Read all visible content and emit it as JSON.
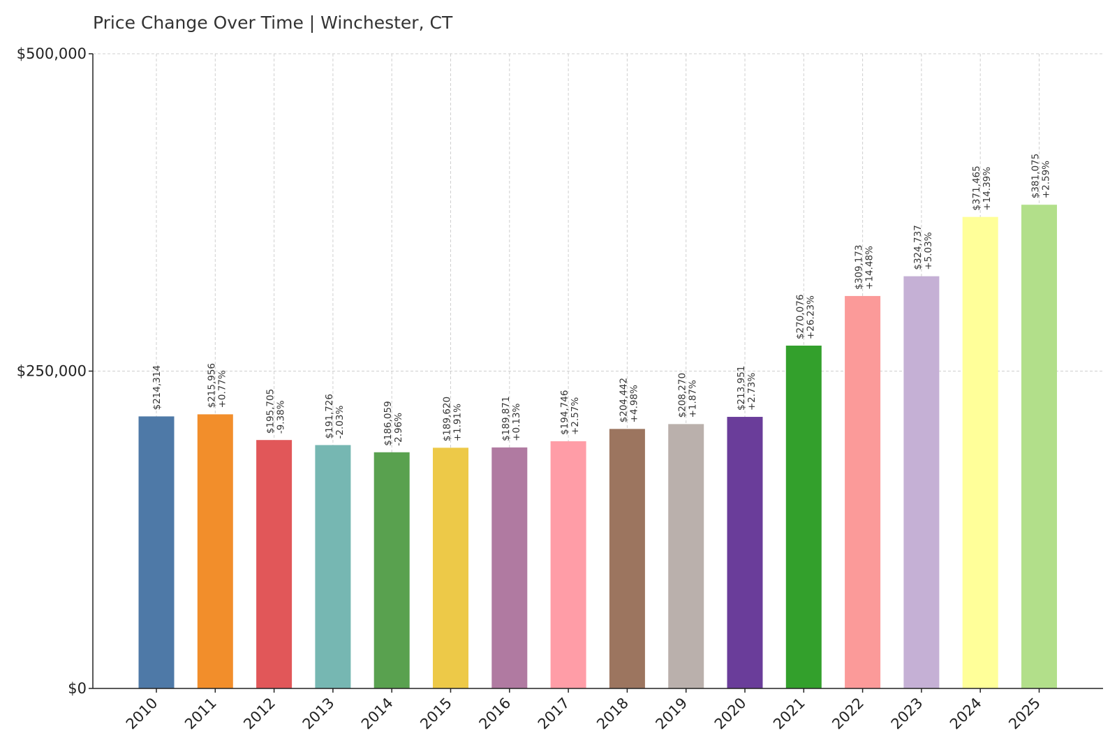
{
  "chart_data": {
    "type": "bar",
    "title": "Price Change Over Time | Winchester, CT",
    "xlabel": "",
    "ylabel": "",
    "ylim": [
      0,
      500000
    ],
    "yticks": [
      {
        "value": 0,
        "label": "$0"
      },
      {
        "value": 250000,
        "label": "$250,000"
      },
      {
        "value": 500000,
        "label": "$500,000"
      }
    ],
    "grid": true,
    "categories": [
      "2010",
      "2011",
      "2012",
      "2013",
      "2014",
      "2015",
      "2016",
      "2017",
      "2018",
      "2019",
      "2020",
      "2021",
      "2022",
      "2023",
      "2024",
      "2025"
    ],
    "values": [
      214314,
      215956,
      195705,
      191726,
      186059,
      189620,
      189871,
      194746,
      204442,
      208270,
      213951,
      270076,
      309173,
      324737,
      371465,
      381075
    ],
    "value_labels": [
      "$214,314",
      "$215,956",
      "$195,705",
      "$191,726",
      "$186,059",
      "$189,620",
      "$189,871",
      "$194,746",
      "$204,442",
      "$208,270",
      "$213,951",
      "$270,076",
      "$309,173",
      "$324,737",
      "$371,465",
      "$381,075"
    ],
    "change_labels": [
      "",
      "+0.77%",
      "-9.38%",
      "-2.03%",
      "-2.96%",
      "+1.91%",
      "+0.13%",
      "+2.57%",
      "+4.98%",
      "+1.87%",
      "+2.73%",
      "+26.23%",
      "+14.48%",
      "+5.03%",
      "+14.39%",
      "+2.59%"
    ],
    "colors": [
      "#4e79a7",
      "#f28e2b",
      "#e15759",
      "#76b7b2",
      "#59a14f",
      "#edc948",
      "#b07aa1",
      "#ff9da7",
      "#9c755f",
      "#bab0ac",
      "#6a3d9a",
      "#33a02c",
      "#fb9a99",
      "#c5b0d5",
      "#ffff99",
      "#b2df8a"
    ]
  }
}
